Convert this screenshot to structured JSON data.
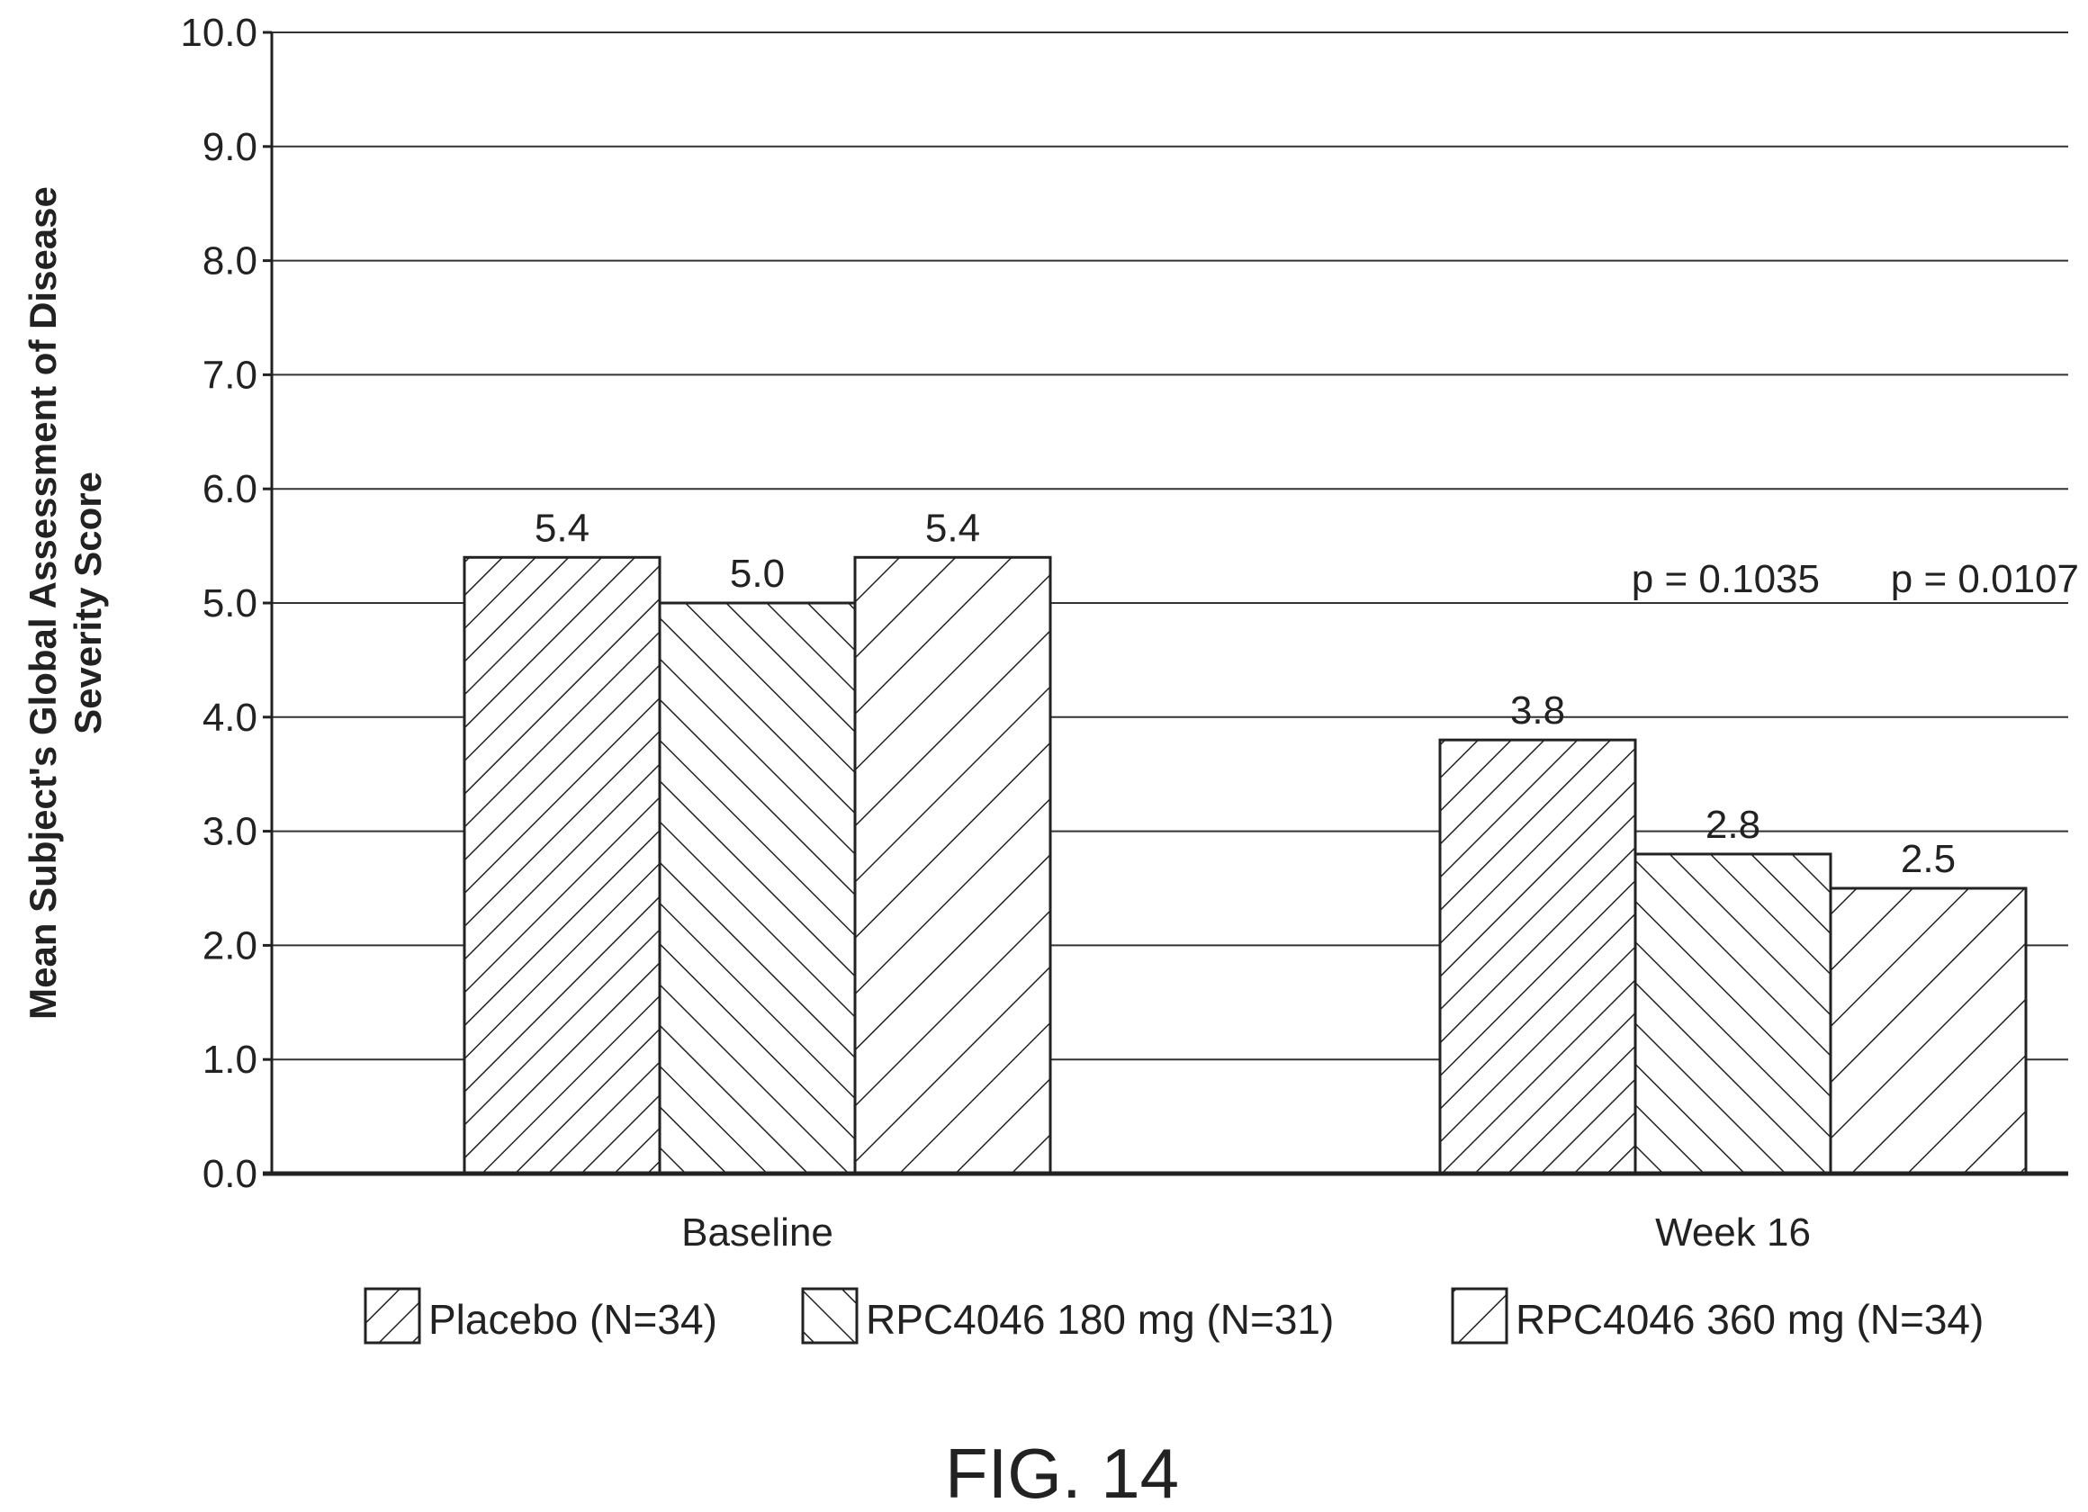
{
  "chart_data": {
    "type": "bar",
    "ylabel_lines": [
      "Mean Subject's Global Assessment of Disease",
      "Severity Score"
    ],
    "ylim": [
      0,
      10
    ],
    "yticks": [
      "0.0",
      "1.0",
      "2.0",
      "3.0",
      "4.0",
      "5.0",
      "6.0",
      "7.0",
      "8.0",
      "9.0",
      "10.0"
    ],
    "categories": [
      "Baseline",
      "Week 16"
    ],
    "series": [
      {
        "name": "Placebo (N=34)",
        "values": [
          5.4,
          3.8
        ],
        "labels": [
          "5.4",
          "3.8"
        ],
        "pattern": "dense-forward-hatch"
      },
      {
        "name": "RPC4046 180 mg (N=31)",
        "values": [
          5.0,
          2.8
        ],
        "labels": [
          "5.0",
          "2.8"
        ],
        "pattern": "back-hatch"
      },
      {
        "name": "RPC4046 360 mg (N=34)",
        "values": [
          5.4,
          2.5
        ],
        "labels": [
          "5.4",
          "2.5"
        ],
        "pattern": "sparse-forward-hatch"
      }
    ],
    "annotations": [
      "p = 0.1035",
      "p = 0.0107"
    ],
    "grid": true,
    "legend_position": "bottom"
  },
  "figure_label": "FIG. 14"
}
